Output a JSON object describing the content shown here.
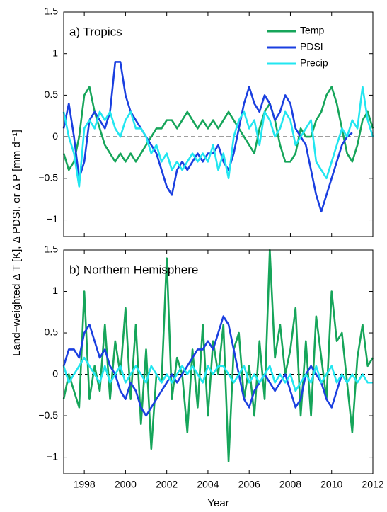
{
  "chart_data": [
    {
      "type": "line",
      "title": "a) Tropics",
      "ylabel": "Land−weighted Δ T [K], Δ PDSI, or Δ P [mm d⁻¹]",
      "x": [
        1997,
        1997.25,
        1997.5,
        1997.75,
        1998,
        1998.25,
        1998.5,
        1998.75,
        1999,
        1999.25,
        1999.5,
        1999.75,
        2000,
        2000.25,
        2000.5,
        2000.75,
        2001,
        2001.25,
        2001.5,
        2001.75,
        2002,
        2002.25,
        2002.5,
        2002.75,
        2003,
        2003.25,
        2003.5,
        2003.75,
        2004,
        2004.25,
        2004.5,
        2004.75,
        2005,
        2005.25,
        2005.5,
        2005.75,
        2006,
        2006.25,
        2006.5,
        2006.75,
        2007,
        2007.25,
        2007.5,
        2007.75,
        2008,
        2008.25,
        2008.5,
        2008.75,
        2009,
        2009.25,
        2009.5,
        2009.75,
        2010,
        2010.25,
        2010.5,
        2010.75,
        2011,
        2011.25,
        2011.5,
        2011.75,
        2012
      ],
      "series": [
        {
          "name": "Temp",
          "color": "#16a55a",
          "values": [
            -0.2,
            -0.4,
            -0.3,
            0.0,
            0.5,
            0.6,
            0.3,
            0.1,
            -0.1,
            -0.2,
            -0.3,
            -0.2,
            -0.3,
            -0.2,
            -0.3,
            -0.2,
            -0.1,
            0.0,
            0.1,
            0.1,
            0.2,
            0.2,
            0.1,
            0.2,
            0.3,
            0.2,
            0.1,
            0.2,
            0.1,
            0.2,
            0.1,
            0.2,
            0.3,
            0.2,
            0.1,
            0.0,
            -0.1,
            -0.2,
            0.1,
            0.3,
            0.4,
            0.2,
            -0.1,
            -0.3,
            -0.3,
            -0.2,
            0.1,
            0.0,
            0.0,
            0.2,
            0.3,
            0.5,
            0.6,
            0.4,
            0.1,
            -0.2,
            -0.3,
            -0.1,
            0.2,
            0.3,
            0.1
          ]
        },
        {
          "name": "PDSI",
          "color": "#1a3fe0",
          "values": [
            0.1,
            0.4,
            0.0,
            -0.5,
            -0.3,
            0.2,
            0.3,
            0.2,
            0.1,
            0.3,
            0.9,
            0.9,
            0.5,
            0.3,
            0.2,
            0.1,
            0.0,
            -0.1,
            -0.2,
            -0.4,
            -0.6,
            -0.7,
            -0.4,
            -0.3,
            -0.4,
            -0.3,
            -0.2,
            -0.3,
            -0.2,
            -0.2,
            -0.1,
            -0.3,
            -0.4,
            -0.2,
            0.1,
            0.4,
            0.6,
            0.4,
            0.3,
            0.5,
            0.4,
            0.2,
            0.3,
            0.5,
            0.4,
            0.1,
            0.0,
            -0.1,
            -0.4,
            -0.7,
            -0.9,
            -0.7,
            -0.5,
            -0.3,
            -0.1,
            0.0,
            0.05,
            null,
            null,
            null,
            null
          ]
        },
        {
          "name": "Precip",
          "color": "#22e6f0",
          "values": [
            0.3,
            0.0,
            -0.2,
            -0.6,
            0.1,
            0.2,
            0.1,
            0.3,
            0.2,
            0.3,
            0.1,
            0.0,
            0.2,
            0.3,
            0.1,
            0.1,
            0.0,
            -0.2,
            -0.1,
            -0.3,
            -0.2,
            -0.4,
            -0.3,
            -0.4,
            -0.3,
            -0.2,
            -0.3,
            -0.2,
            -0.3,
            -0.1,
            -0.4,
            -0.2,
            -0.5,
            0.0,
            0.2,
            0.3,
            0.1,
            0.2,
            -0.1,
            0.3,
            0.2,
            0.0,
            0.1,
            0.3,
            0.2,
            -0.1,
            0.0,
            0.1,
            0.2,
            -0.3,
            -0.4,
            -0.5,
            -0.3,
            -0.1,
            0.1,
            0.0,
            0.2,
            0.1,
            0.6,
            0.2,
            0.0
          ]
        }
      ],
      "xlim": [
        1997,
        2012
      ],
      "xticks": [
        1998,
        2000,
        2002,
        2004,
        2006,
        2008,
        2010,
        2012
      ],
      "ylim": [
        -1.2,
        1.5
      ],
      "yticks": [
        {
          "value": -1,
          "label": "−1"
        },
        {
          "value": -0.5,
          "label": "−0.5"
        },
        0,
        0.5,
        1,
        1.5
      ],
      "legend": "upper right"
    },
    {
      "type": "line",
      "title": "b) Northern Hemisphere",
      "xlabel": "Year",
      "x": [
        1997,
        1997.25,
        1997.5,
        1997.75,
        1998,
        1998.25,
        1998.5,
        1998.75,
        1999,
        1999.25,
        1999.5,
        1999.75,
        2000,
        2000.25,
        2000.5,
        2000.75,
        2001,
        2001.25,
        2001.5,
        2001.75,
        2002,
        2002.25,
        2002.5,
        2002.75,
        2003,
        2003.25,
        2003.5,
        2003.75,
        2004,
        2004.25,
        2004.5,
        2004.75,
        2005,
        2005.25,
        2005.5,
        2005.75,
        2006,
        2006.25,
        2006.5,
        2006.75,
        2007,
        2007.25,
        2007.5,
        2007.75,
        2008,
        2008.25,
        2008.5,
        2008.75,
        2009,
        2009.25,
        2009.5,
        2009.75,
        2010,
        2010.25,
        2010.5,
        2010.75,
        2011,
        2011.25,
        2011.5,
        2011.75,
        2012
      ],
      "series": [
        {
          "color": "#16a55a",
          "values": [
            -0.3,
            0.0,
            -0.2,
            -0.4,
            1.0,
            -0.3,
            0.1,
            -0.2,
            0.6,
            -0.3,
            0.4,
            0.0,
            0.8,
            -0.3,
            0.6,
            -0.6,
            0.3,
            -0.9,
            0.0,
            -0.1,
            1.4,
            -0.3,
            0.2,
            0.0,
            -0.7,
            0.3,
            -0.4,
            0.6,
            -0.5,
            0.4,
            0.0,
            0.6,
            -1.05,
            0.3,
            0.5,
            -0.3,
            0.1,
            -0.5,
            0.4,
            -0.3,
            1.5,
            0.2,
            0.6,
            0.0,
            0.3,
            0.8,
            -0.5,
            0.4,
            -0.5,
            0.7,
            0.2,
            -0.3,
            1.0,
            0.4,
            0.5,
            -0.1,
            -0.7,
            0.2,
            0.6,
            0.1,
            0.2
          ]
        },
        {
          "color": "#1a3fe0",
          "values": [
            0.1,
            0.3,
            0.3,
            0.2,
            0.5,
            0.6,
            0.4,
            0.2,
            0.3,
            0.1,
            0.0,
            -0.2,
            -0.3,
            -0.1,
            -0.2,
            -0.4,
            -0.5,
            -0.4,
            -0.3,
            -0.2,
            -0.1,
            0.0,
            -0.1,
            0.0,
            0.1,
            0.2,
            0.3,
            0.3,
            0.4,
            0.3,
            0.5,
            0.7,
            0.6,
            0.3,
            0.0,
            -0.3,
            -0.4,
            -0.2,
            -0.1,
            0.0,
            -0.1,
            -0.2,
            -0.1,
            0.0,
            -0.2,
            -0.4,
            -0.3,
            0.0,
            0.1,
            0.0,
            -0.1,
            -0.3,
            -0.4,
            -0.2,
            0.0,
            null,
            null,
            null,
            null,
            null,
            null
          ]
        },
        {
          "color": "#22e6f0",
          "values": [
            0.1,
            -0.1,
            0.0,
            0.1,
            0.2,
            0.1,
            0.0,
            -0.1,
            0.1,
            -0.1,
            0.0,
            0.1,
            -0.1,
            0.0,
            0.1,
            0.0,
            -0.1,
            0.1,
            0.0,
            -0.1,
            0.0,
            -0.1,
            0.0,
            0.1,
            0.0,
            0.1,
            0.0,
            -0.1,
            0.1,
            0.0,
            0.1,
            0.1,
            0.0,
            -0.1,
            0.0,
            0.1,
            -0.1,
            0.0,
            -0.1,
            0.0,
            0.1,
            -0.1,
            0.0,
            -0.1,
            0.0,
            -0.2,
            -0.1,
            0.0,
            -0.1,
            0.1,
            -0.1,
            0.0,
            0.1,
            -0.1,
            0.0,
            -0.1,
            0.0,
            -0.1,
            0.0,
            -0.1,
            -0.1
          ]
        }
      ],
      "xlim": [
        1997,
        2012
      ],
      "xticks": [
        1998,
        2000,
        2002,
        2004,
        2006,
        2008,
        2010,
        2012
      ],
      "ylim": [
        -1.2,
        1.5
      ],
      "yticks": [
        {
          "value": -1,
          "label": "−1"
        },
        {
          "value": -0.5,
          "label": "−0.5"
        },
        0,
        0.5,
        1,
        1.5
      ]
    }
  ]
}
